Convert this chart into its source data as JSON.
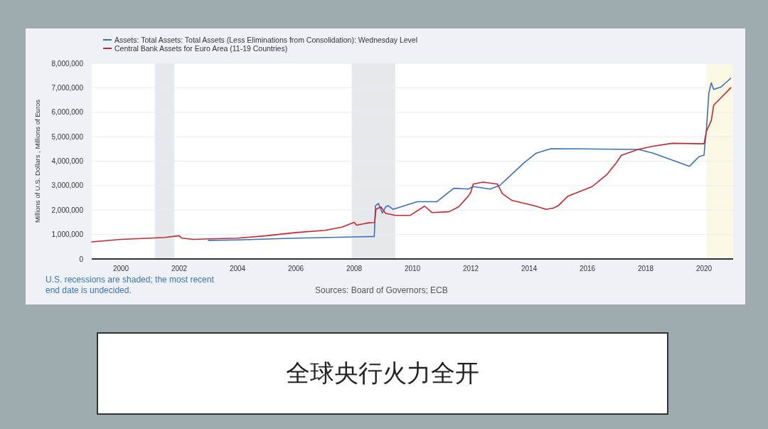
{
  "chart_data": {
    "type": "line",
    "ylabel": "Millions of U.S. Dollars , Millions of Euros",
    "legend": "top left",
    "grid": "y",
    "xlim": [
      "1999-01",
      "2021-01"
    ],
    "xticks": [
      "2000",
      "2002",
      "2004",
      "2006",
      "2008",
      "2010",
      "2012",
      "2014",
      "2016",
      "2018",
      "2020"
    ],
    "ylim": [
      0,
      8000000
    ],
    "yticks": [
      {
        "value": 0,
        "label": "0"
      },
      {
        "value": 1000000,
        "label": "1,000,000"
      },
      {
        "value": 2000000,
        "label": "2,000,000"
      },
      {
        "value": 3000000,
        "label": "3,000,000"
      },
      {
        "value": 4000000,
        "label": "4,000,000"
      },
      {
        "value": 5000000,
        "label": "5,000,000"
      },
      {
        "value": 6000000,
        "label": "6,000,000"
      },
      {
        "value": 7000000,
        "label": "7,000,000"
      },
      {
        "value": 8000000,
        "label": "8,000,000"
      }
    ],
    "bands": [
      {
        "axis": "x",
        "from": "2001-03",
        "to": "2001-11",
        "color": "#e6e9ec"
      },
      {
        "axis": "x",
        "from": "2007-12",
        "to": "2009-06",
        "color": "#e6e9ec"
      },
      {
        "axis": "x",
        "from": "2020-02",
        "to": "2021-01",
        "color": "#fbf9e4"
      }
    ],
    "series": [
      {
        "name": "Assets: Total Assets: Total Assets (Less Eliminations from Consolidation): Wednesday Level",
        "color": "#3a70b8",
        "x": [
          "2003-01",
          "2004-01",
          "2006-01",
          "2008-01",
          "2008-09-10",
          "2008-09-25",
          "2008-11",
          "2008-12-20",
          "2009-02",
          "2009-03",
          "2009-05",
          "2010-03",
          "2010-11",
          "2011-06",
          "2011-12",
          "2012-02",
          "2012-09",
          "2013-01",
          "2013-11",
          "2014-04",
          "2014-10",
          "2015-11",
          "2017-06",
          "2017-10",
          "2018-04",
          "2019-07",
          "2019-09",
          "2019-11",
          "2020-01",
          "2020-02",
          "2020-03",
          "2020-04",
          "2020-05",
          "2020-08",
          "2020-12"
        ],
        "values": [
          760000,
          780000,
          850000,
          900000,
          920000,
          2180000,
          2270000,
          1880000,
          2130000,
          2180000,
          2030000,
          2340000,
          2340000,
          2890000,
          2860000,
          2960000,
          2860000,
          3010000,
          3940000,
          4330000,
          4510000,
          4500000,
          4480000,
          4480000,
          4330000,
          3790000,
          3990000,
          4190000,
          4240000,
          5310000,
          6780000,
          7200000,
          6930000,
          7030000,
          7390000
        ]
      },
      {
        "name": "Central Bank Assets for Euro Area (11-19 Countries)",
        "color": "#c3282e",
        "x": [
          "1999-01",
          "2000-01",
          "2001-01",
          "2001-07",
          "2002-01",
          "2002-02",
          "2002-07",
          "2003-01",
          "2004-01",
          "2005-01",
          "2006-01",
          "2007-01",
          "2007-08",
          "2008-01",
          "2008-02",
          "2008-07",
          "2008-09-15",
          "2008-10",
          "2008-12",
          "2009-02",
          "2009-06",
          "2009-12",
          "2010-06",
          "2010-09",
          "2011-04",
          "2011-08",
          "2011-12",
          "2012-01",
          "2012-02",
          "2012-06",
          "2012-12",
          "2013-02",
          "2013-06",
          "2014-03",
          "2014-08",
          "2014-11",
          "2015-01",
          "2015-05",
          "2016-03",
          "2016-09",
          "2017-01",
          "2017-03",
          "2017-10",
          "2018-04",
          "2018-12",
          "2020-01",
          "2020-02",
          "2020-04",
          "2020-05",
          "2020-08",
          "2020-12"
        ],
        "values": [
          700000,
          800000,
          850000,
          880000,
          950000,
          850000,
          800000,
          820000,
          850000,
          950000,
          1080000,
          1170000,
          1300000,
          1500000,
          1380000,
          1480000,
          1490000,
          2030000,
          2130000,
          1860000,
          1780000,
          1780000,
          2160000,
          1900000,
          1930000,
          2130000,
          2570000,
          2720000,
          3060000,
          3140000,
          3060000,
          2670000,
          2390000,
          2180000,
          2030000,
          2080000,
          2180000,
          2570000,
          2960000,
          3450000,
          3940000,
          4240000,
          4480000,
          4610000,
          4730000,
          4710000,
          5220000,
          5660000,
          6290000,
          6590000,
          7000000
        ]
      }
    ],
    "annotations": [
      "U.S. recessions are shaded; the most recent end date is undecided.",
      "Sources: Board of Governors; ECB",
      "全球央行火力全开"
    ]
  }
}
